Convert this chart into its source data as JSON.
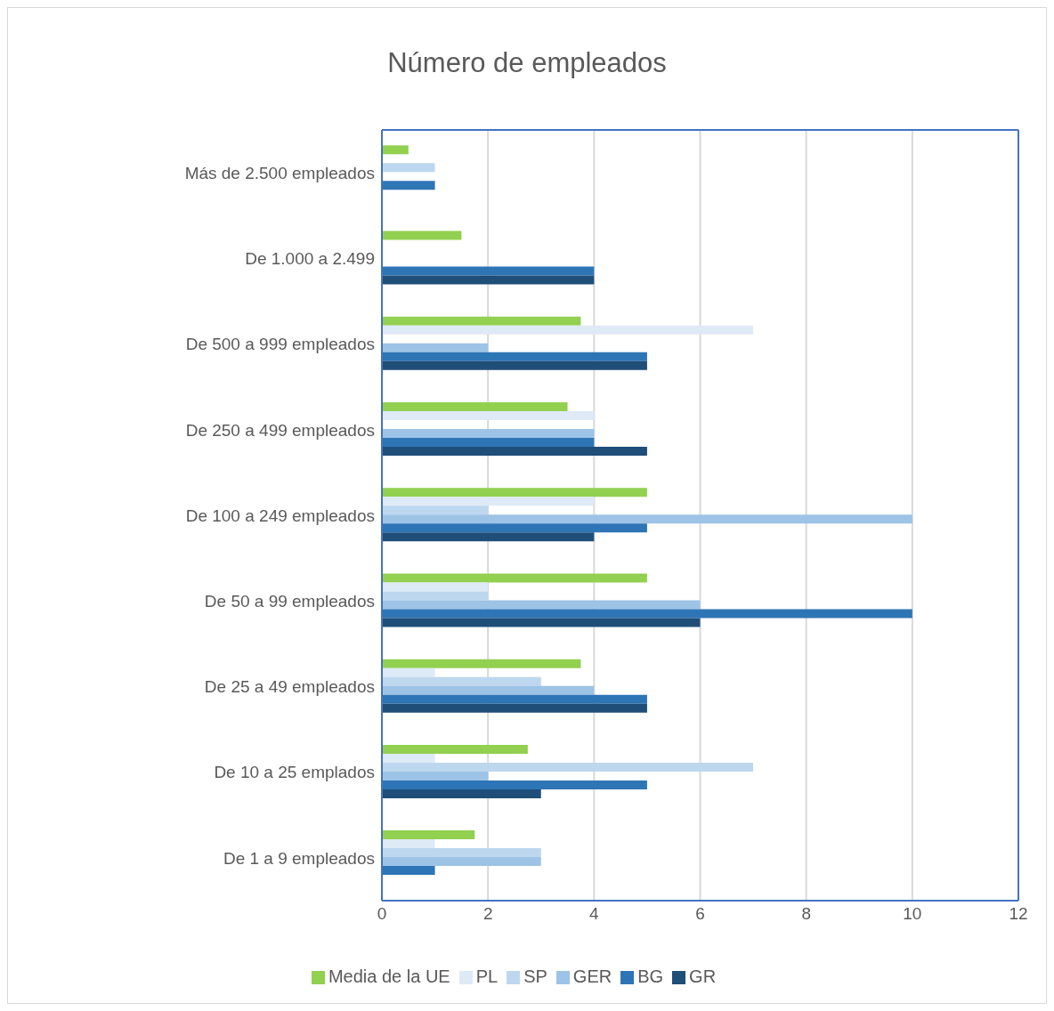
{
  "chart_data": {
    "type": "bar",
    "orientation": "horizontal",
    "title": "Número de empleados",
    "categories": [
      "Más de 2.500 empleados",
      "De 1.000 a 2.499",
      "De 500 a 999 empleados",
      "De 250 a 499 empleados",
      "De 100 a 249 empleados",
      "De 50 a 99 empleados",
      "De 25 a 49 empleados",
      "De 10 a 25 emplados",
      "De 1 a 9 empleados"
    ],
    "series": [
      {
        "name": "Media de la UE",
        "color": "#92d050",
        "values": [
          0.5,
          1.5,
          3.75,
          3.5,
          5,
          5,
          3.75,
          2.75,
          1.75
        ]
      },
      {
        "name": "PL",
        "color": "#deeaf6",
        "values": [
          0,
          0,
          7,
          4,
          4,
          2,
          1,
          1,
          1
        ]
      },
      {
        "name": "SP",
        "color": "#bdd7ee",
        "values": [
          1,
          0,
          0,
          0,
          2,
          2,
          3,
          7,
          3
        ]
      },
      {
        "name": "GER",
        "color": "#9dc3e6",
        "values": [
          0,
          0,
          2,
          4,
          10,
          6,
          4,
          2,
          3
        ]
      },
      {
        "name": "BG",
        "color": "#2e75b6",
        "values": [
          1,
          4,
          5,
          4,
          5,
          10,
          5,
          5,
          1
        ]
      },
      {
        "name": "GR",
        "color": "#1f4e79",
        "values": [
          0,
          4,
          5,
          5,
          4,
          6,
          5,
          3,
          0
        ]
      }
    ],
    "xlim": [
      0,
      12
    ],
    "xticks": [
      0,
      2,
      4,
      6,
      8,
      10,
      12
    ],
    "grid": "x",
    "legend": "bottom"
  }
}
